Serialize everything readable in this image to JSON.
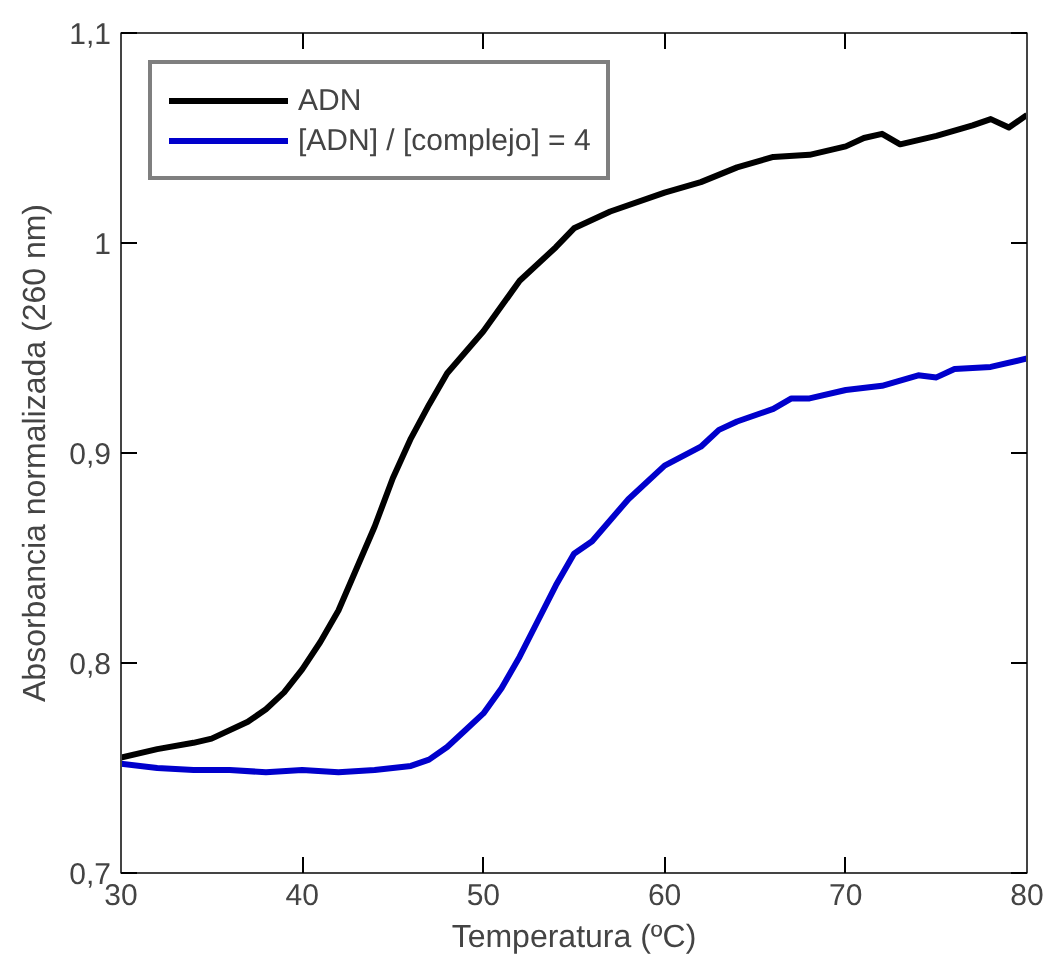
{
  "chart_data": {
    "type": "line",
    "xlabel": "Temperatura (ºC)",
    "ylabel": "Absorbancia normalizada (260 nm)",
    "xlim": [
      30,
      80
    ],
    "xticks": [
      30,
      40,
      50,
      60,
      70,
      80
    ],
    "ylim": [
      0.7,
      1.1
    ],
    "yticks": [
      {
        "value": 0.7,
        "label": "0,7"
      },
      {
        "value": 0.8,
        "label": "0,8"
      },
      {
        "value": 0.9,
        "label": "0,9"
      },
      {
        "value": 1,
        "label": "1"
      },
      {
        "value": 1.1,
        "label": "1,1"
      }
    ],
    "grid": false,
    "legend": "top left",
    "marker": "none",
    "line_style": "solid",
    "series": [
      {
        "name": "ADN",
        "color": "#000000",
        "x": [
          30,
          32,
          34,
          35,
          37,
          38,
          39,
          40,
          41,
          42,
          43,
          44,
          45,
          46,
          47,
          48,
          50,
          52,
          54,
          55,
          57,
          60,
          62,
          64,
          66,
          68,
          70,
          71,
          72,
          73,
          75,
          77,
          78,
          79,
          80
        ],
        "values": [
          0.755,
          0.759,
          0.762,
          0.764,
          0.772,
          0.778,
          0.786,
          0.797,
          0.81,
          0.825,
          0.845,
          0.865,
          0.888,
          0.907,
          0.923,
          0.938,
          0.958,
          0.982,
          0.998,
          1.007,
          1.015,
          1.024,
          1.029,
          1.036,
          1.041,
          1.042,
          1.046,
          1.05,
          1.052,
          1.047,
          1.051,
          1.056,
          1.059,
          1.055,
          1.061
        ]
      },
      {
        "name": "[ADN] / [complejo] = 4",
        "color": "#0000cc",
        "x": [
          30,
          32,
          34,
          36,
          38,
          40,
          42,
          44,
          46,
          47,
          48,
          49,
          50,
          51,
          52,
          53,
          54,
          55,
          56,
          58,
          60,
          62,
          63,
          64,
          66,
          67,
          68,
          70,
          72,
          74,
          75,
          76,
          78,
          80
        ],
        "values": [
          0.752,
          0.75,
          0.749,
          0.749,
          0.748,
          0.749,
          0.748,
          0.749,
          0.751,
          0.754,
          0.76,
          0.768,
          0.776,
          0.788,
          0.803,
          0.82,
          0.837,
          0.852,
          0.858,
          0.878,
          0.894,
          0.903,
          0.911,
          0.915,
          0.921,
          0.926,
          0.926,
          0.93,
          0.932,
          0.937,
          0.936,
          0.94,
          0.941,
          0.945
        ]
      }
    ]
  }
}
